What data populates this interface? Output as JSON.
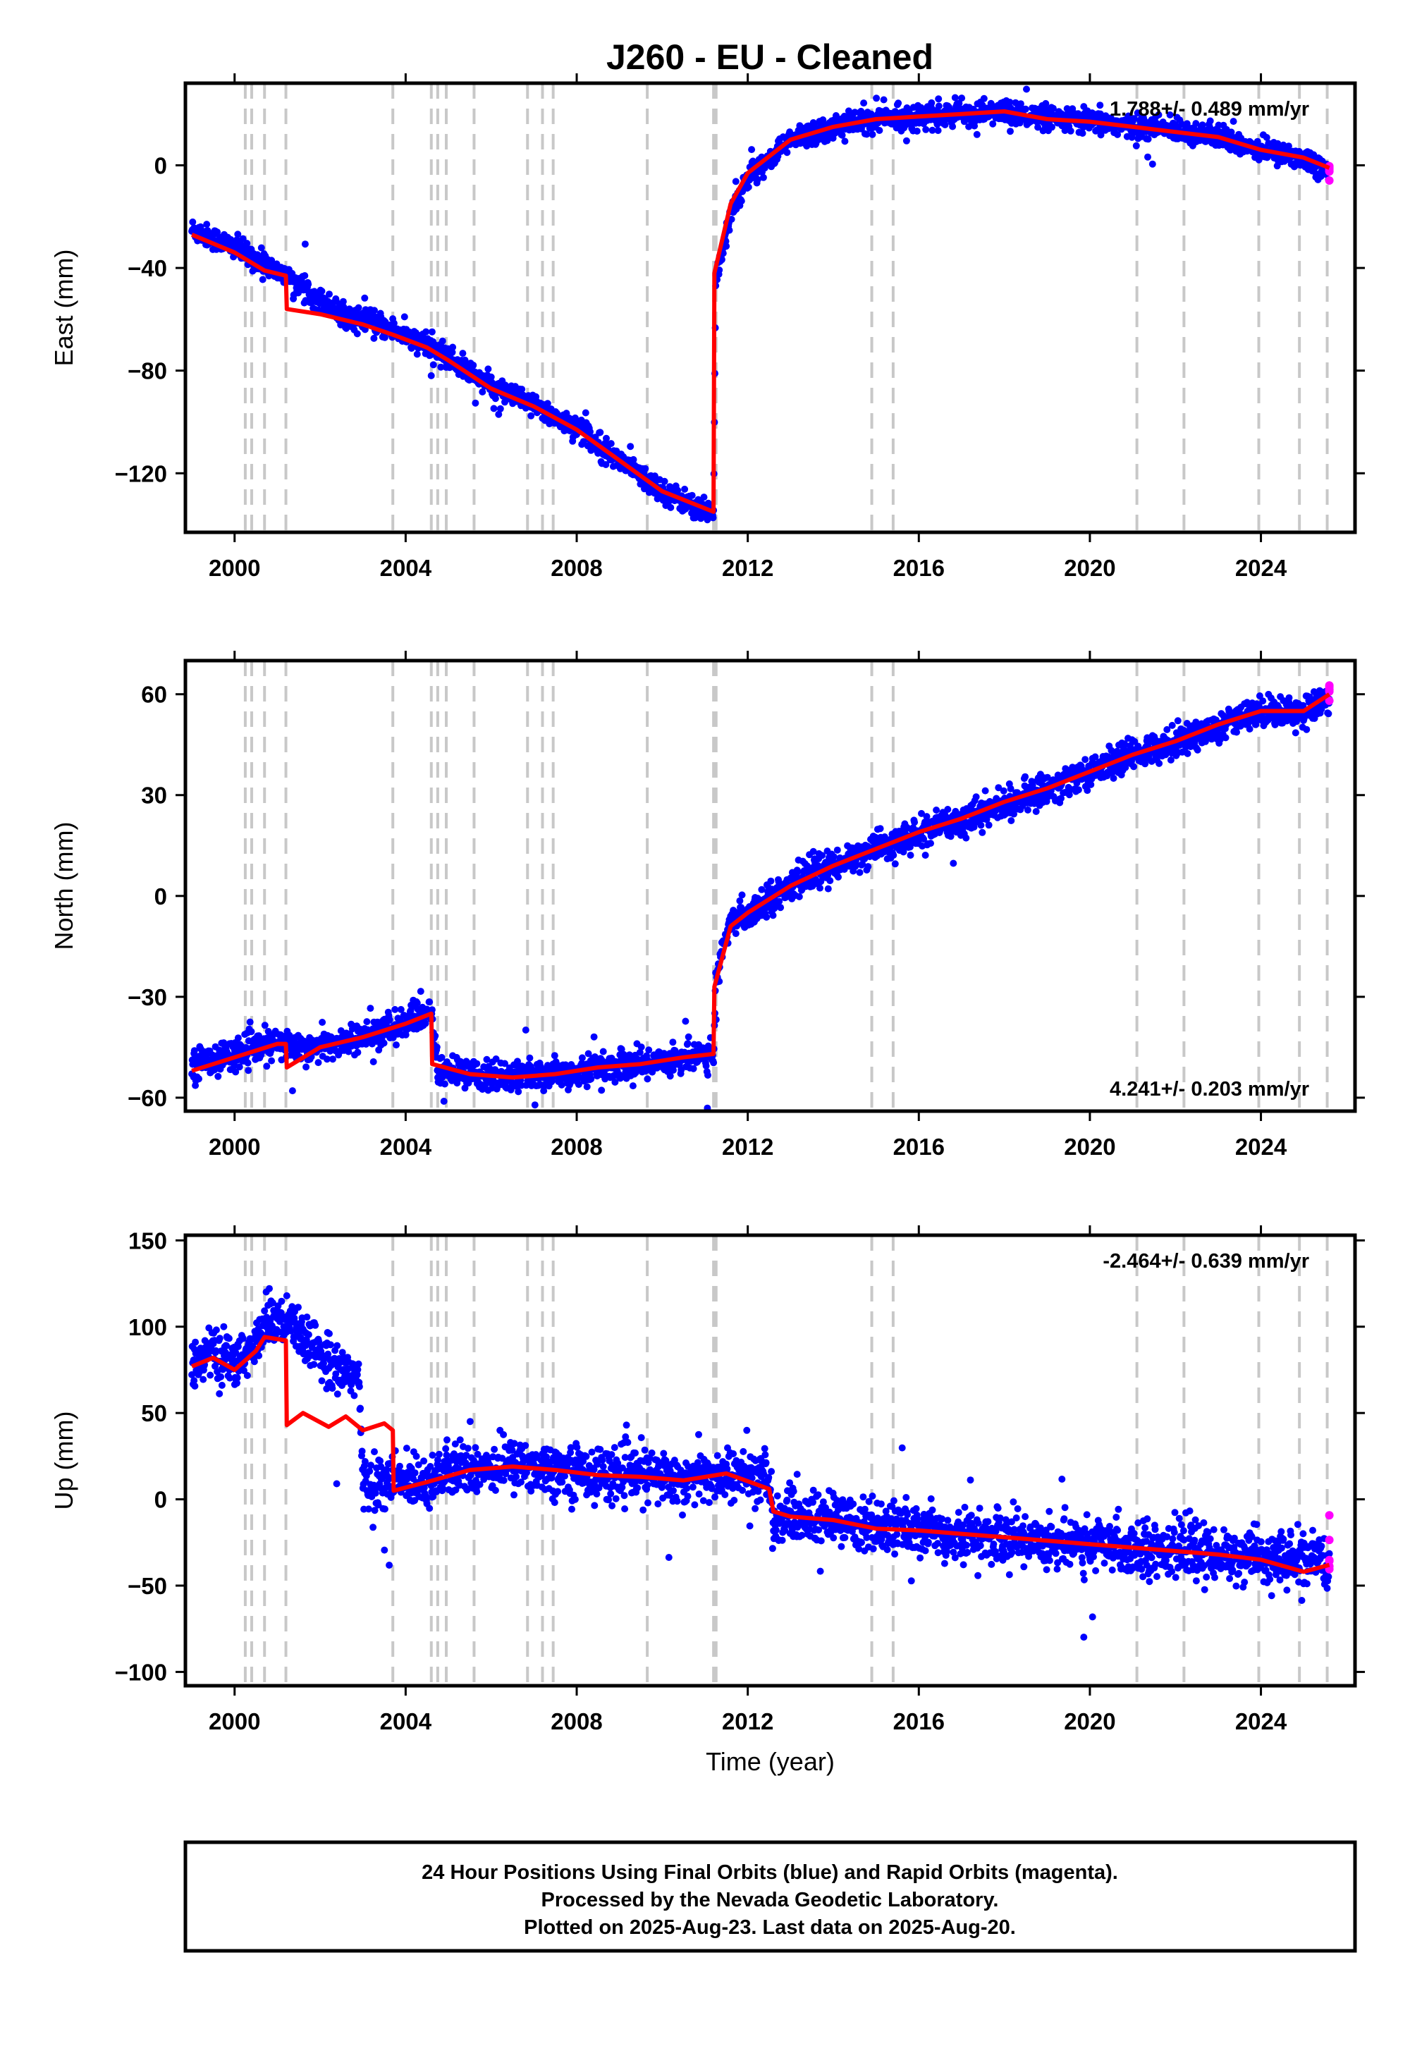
{
  "chart_data": [
    {
      "type": "scatter",
      "title": "J260  - EU - Cleaned",
      "xlabel": "",
      "ylabel": "East (mm)",
      "xlim": [
        1998.85,
        2026.2
      ],
      "ylim": [
        -143,
        32
      ],
      "xticks": [
        2000,
        2004,
        2008,
        2012,
        2016,
        2020,
        2024
      ],
      "yticks": [
        -120,
        -80,
        -40,
        0
      ],
      "ytick_labels": [
        "−120",
        "−80",
        "−40",
        "0"
      ],
      "rate_text": "1.788+/- 0.489 mm/yr",
      "rate_position": "top-right",
      "grid": false,
      "series": [
        {
          "color": "#0000ff",
          "x": [
            1999.0,
            2000.0,
            2001.2,
            2002.5,
            2003.7,
            2004.9,
            2006.0,
            2007.0,
            2008.0,
            2009.0,
            2010.0,
            2011.2,
            2011.25,
            2011.6,
            2012.0,
            2013.0,
            2014.0,
            2015.0,
            2016.0,
            2017.0,
            2018.0,
            2019.0,
            2020.0,
            2021.0,
            2022.0,
            2023.0,
            2024.0,
            2025.0,
            2025.6
          ],
          "values": [
            -25,
            -32,
            -43,
            -58,
            -64,
            -74,
            -86,
            -94,
            -102,
            -115,
            -127,
            -136,
            -45,
            -18,
            -5,
            10,
            15,
            18,
            19,
            20,
            21,
            18,
            17,
            15,
            14,
            11,
            6,
            3,
            -2
          ]
        },
        {
          "color": "#ff00ff",
          "x": [
            2025.6
          ],
          "values": [
            -1
          ]
        }
      ],
      "model": {
        "color": "#ff0000",
        "x": [
          1999.0,
          2000.0,
          2000.7,
          2001.2,
          2001.22,
          2002.0,
          2003.0,
          2003.7,
          2004.5,
          2005.0,
          2006.0,
          2007.0,
          2008.0,
          2009.0,
          2010.0,
          2011.2,
          2011.22,
          2011.6,
          2012.0,
          2013.0,
          2014.0,
          2015.0,
          2016.0,
          2017.0,
          2018.0,
          2019.0,
          2020.0,
          2021.0,
          2022.0,
          2023.0,
          2024.0,
          2025.0,
          2025.6
        ],
        "values": [
          -27,
          -34,
          -41,
          -43,
          -56,
          -58,
          -62,
          -66,
          -71,
          -76,
          -87,
          -94,
          -103,
          -115,
          -127,
          -135,
          -42,
          -15,
          -3,
          10,
          15,
          18,
          19,
          20,
          21,
          18,
          17,
          15,
          13,
          11,
          6,
          3,
          -1
        ]
      },
      "breaks": [
        2000.25,
        2000.4,
        2000.7,
        2001.2,
        2003.7,
        2004.6,
        2004.75,
        2004.95,
        2005.6,
        2006.85,
        2007.2,
        2007.45,
        2009.65,
        2011.2,
        2011.26,
        2014.9,
        2015.4,
        2021.1,
        2022.2,
        2023.95,
        2024.9,
        2025.55
      ]
    },
    {
      "type": "scatter",
      "xlabel": "",
      "ylabel": "North (mm)",
      "xlim": [
        1998.85,
        2026.2
      ],
      "ylim": [
        -64,
        70
      ],
      "xticks": [
        2000,
        2004,
        2008,
        2012,
        2016,
        2020,
        2024
      ],
      "yticks": [
        -60,
        -30,
        0,
        30,
        60
      ],
      "ytick_labels": [
        "−60",
        "−30",
        "0",
        "30",
        "60"
      ],
      "rate_text": "4.241+/- 0.203 mm/yr",
      "rate_position": "bottom-right",
      "grid": false,
      "series": [
        {
          "color": "#0000ff",
          "x": [
            1999.0,
            2000.0,
            2001.0,
            2002.0,
            2003.0,
            2004.0,
            2004.6,
            2004.75,
            2005.5,
            2006.5,
            2007.5,
            2008.5,
            2009.5,
            2010.5,
            2011.2,
            2011.25,
            2011.6,
            2012.0,
            2013.0,
            2014.0,
            2015.0,
            2016.0,
            2017.0,
            2018.0,
            2019.0,
            2020.0,
            2021.0,
            2022.0,
            2023.0,
            2024.0,
            2025.0,
            2025.6
          ],
          "values": [
            -50,
            -47,
            -44,
            -45,
            -42,
            -38,
            -34,
            -52,
            -53,
            -54,
            -53,
            -51,
            -50,
            -48,
            -47,
            -25,
            -8,
            -5,
            3,
            9,
            14,
            18,
            23,
            27,
            32,
            37,
            42,
            46,
            50,
            55,
            55,
            58
          ]
        },
        {
          "color": "#ff00ff",
          "x": [
            2025.6
          ],
          "values": [
            61
          ]
        }
      ],
      "model": {
        "color": "#ff0000",
        "x": [
          1999.0,
          2000.0,
          2001.0,
          2001.2,
          2001.22,
          2002.0,
          2003.0,
          2004.0,
          2004.6,
          2004.62,
          2005.5,
          2006.5,
          2007.5,
          2008.5,
          2009.5,
          2010.5,
          2011.2,
          2011.22,
          2011.6,
          2012.0,
          2013.0,
          2014.0,
          2015.0,
          2016.0,
          2017.0,
          2018.0,
          2019.0,
          2020.0,
          2021.0,
          2022.0,
          2023.0,
          2024.0,
          2025.0,
          2025.6
        ],
        "values": [
          -52,
          -48,
          -44,
          -44,
          -51,
          -45,
          -42,
          -38,
          -35,
          -50,
          -53,
          -54,
          -53,
          -51,
          -50,
          -48,
          -47,
          -27,
          -9,
          -5,
          3,
          9,
          14,
          19,
          23,
          28,
          32,
          37,
          42,
          46,
          51,
          55,
          55,
          60
        ]
      },
      "breaks": [
        2000.25,
        2000.4,
        2000.7,
        2001.2,
        2003.7,
        2004.6,
        2004.75,
        2004.95,
        2005.6,
        2006.85,
        2007.2,
        2007.45,
        2009.65,
        2011.2,
        2011.26,
        2014.9,
        2015.4,
        2021.1,
        2022.2,
        2023.95,
        2024.9,
        2025.55
      ]
    },
    {
      "type": "scatter",
      "xlabel": "Time (year)",
      "ylabel": "Up (mm)",
      "xlim": [
        1998.85,
        2026.2
      ],
      "ylim": [
        -108,
        153
      ],
      "xticks": [
        2000,
        2004,
        2008,
        2012,
        2016,
        2020,
        2024
      ],
      "yticks": [
        -100,
        -50,
        0,
        50,
        100,
        150
      ],
      "ytick_labels": [
        "−100",
        "−50",
        "0",
        "50",
        "100",
        "150"
      ],
      "rate_text": "-2.464+/- 0.639 mm/yr",
      "rate_position": "top-right",
      "grid": false,
      "series": [
        {
          "color": "#0000ff",
          "x": [
            1999.0,
            1999.5,
            2000.0,
            2000.5,
            2000.8,
            2001.2,
            2001.6,
            2002.0,
            2002.5,
            2002.9,
            2003.0,
            2003.7,
            2004.5,
            2005.5,
            2006.5,
            2007.5,
            2008.5,
            2009.5,
            2010.5,
            2011.5,
            2012.5,
            2012.6,
            2013.0,
            2014.0,
            2015.0,
            2016.0,
            2017.0,
            2018.0,
            2019.0,
            2020.0,
            2021.0,
            2022.0,
            2023.0,
            2024.0,
            2025.0,
            2025.6
          ],
          "values": [
            80,
            85,
            78,
            90,
            105,
            100,
            95,
            85,
            75,
            72,
            8,
            10,
            12,
            18,
            20,
            18,
            15,
            14,
            12,
            14,
            12,
            -15,
            -10,
            -12,
            -16,
            -18,
            -20,
            -22,
            -24,
            -26,
            -28,
            -30,
            -32,
            -34,
            -36,
            -38
          ]
        },
        {
          "color": "#ff00ff",
          "x": [
            2025.6
          ],
          "values": [
            -35
          ]
        }
      ],
      "model": {
        "color": "#ff0000",
        "x": [
          1999.0,
          1999.5,
          2000.0,
          2000.5,
          2000.7,
          2001.2,
          2001.22,
          2001.6,
          2002.2,
          2002.6,
          2003.0,
          2003.5,
          2003.7,
          2003.72,
          2004.5,
          2005.5,
          2006.5,
          2007.5,
          2008.5,
          2009.5,
          2010.5,
          2011.5,
          2012.5,
          2012.6,
          2013.0,
          2014.0,
          2015.0,
          2016.0,
          2017.0,
          2018.0,
          2019.0,
          2020.0,
          2021.0,
          2022.0,
          2023.0,
          2024.0,
          2025.0,
          2025.6
        ],
        "values": [
          77,
          82,
          75,
          86,
          94,
          92,
          43,
          50,
          42,
          48,
          40,
          44,
          40,
          5,
          10,
          17,
          19,
          17,
          14,
          13,
          11,
          15,
          6,
          -7,
          -10,
          -12,
          -17,
          -18,
          -20,
          -22,
          -24,
          -26,
          -28,
          -30,
          -32,
          -35,
          -42,
          -38
        ]
      },
      "breaks": [
        2000.25,
        2000.4,
        2000.7,
        2001.2,
        2003.7,
        2004.6,
        2004.75,
        2004.95,
        2005.6,
        2006.85,
        2007.2,
        2007.45,
        2009.65,
        2011.2,
        2011.26,
        2014.9,
        2015.4,
        2021.1,
        2022.2,
        2023.95,
        2024.9,
        2025.55
      ]
    }
  ],
  "caption": {
    "line1": "24 Hour Positions Using Final Orbits (blue) and Rapid Orbits (magenta).",
    "line2": "Processed by the Nevada Geodetic Laboratory.",
    "line3": "Plotted on 2025-Aug-23. Last data on 2025-Aug-20."
  }
}
